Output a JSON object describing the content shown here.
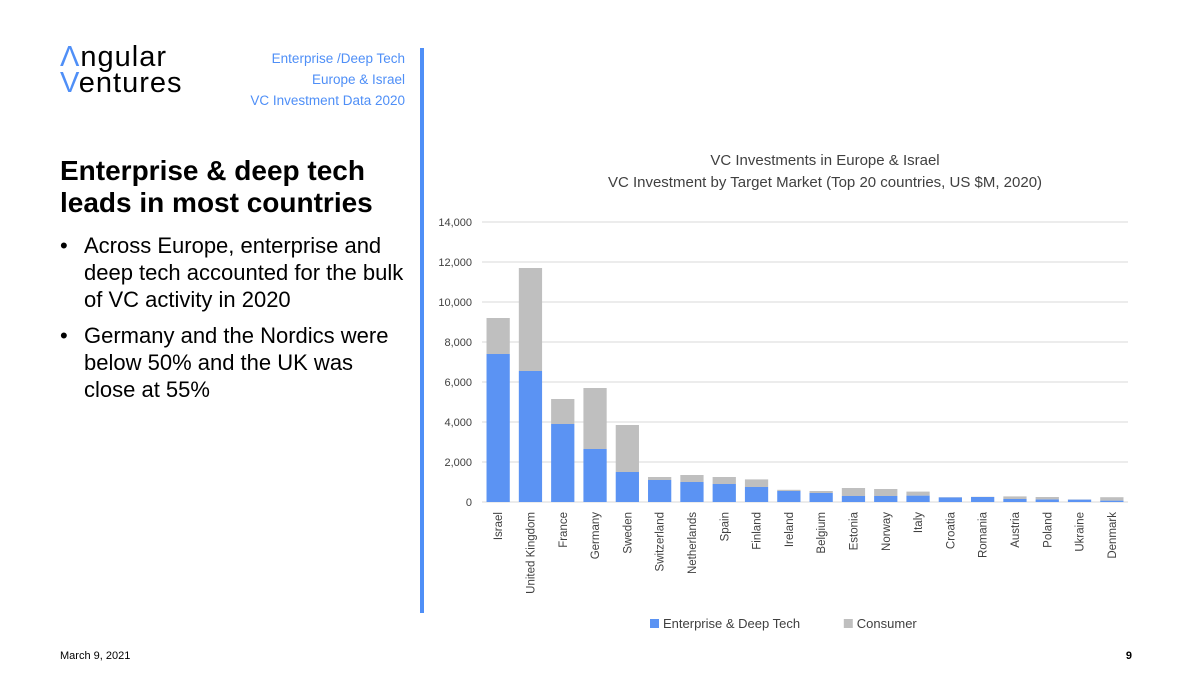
{
  "logo": {
    "line1_accent": "Λ",
    "line1_rest": "ngular",
    "line2_accent": "V",
    "line2_rest": "entures"
  },
  "header": {
    "subtitle_lines": [
      "Enterprise /Deep Tech",
      "Europe & Israel",
      "VC Investment Data 2020"
    ]
  },
  "content": {
    "heading": "Enterprise & deep tech leads in most countries",
    "bullets": [
      "Across Europe, enterprise and deep tech accounted for the bulk of VC activity in 2020",
      "Germany and the Nordics were below 50% and the UK was close at 55%"
    ],
    "bullet_symbol": "•"
  },
  "footer": {
    "date": "March 9, 2021",
    "page_number": "9"
  },
  "colors": {
    "accent": "#4f8ff7",
    "enterprise": "#5b93f3",
    "consumer": "#bfbfbf",
    "grid": "#d9d9d9",
    "text": "#404040"
  },
  "chart_data": {
    "type": "bar",
    "stacked": true,
    "title": "VC Investments in Europe & Israel",
    "subtitle": "VC Investment by Target Market  (Top 20 countries, US $M, 2020)",
    "categories": [
      "Israel",
      "United Kingdom",
      "France",
      "Germany",
      "Sweden",
      "Switzerland",
      "Netherlands",
      "Spain",
      "Finland",
      "Ireland",
      "Belgium",
      "Estonia",
      "Norway",
      "Italy",
      "Croatia",
      "Romania",
      "Austria",
      "Poland",
      "Ukraine",
      "Denmark"
    ],
    "series": [
      {
        "name": "Enterprise & Deep Tech",
        "values": [
          7400,
          6550,
          3900,
          2650,
          1500,
          1100,
          1000,
          900,
          750,
          550,
          450,
          300,
          300,
          320,
          230,
          250,
          150,
          130,
          120,
          70
        ]
      },
      {
        "name": "Consumer",
        "values": [
          1800,
          5150,
          1250,
          3050,
          2350,
          150,
          350,
          350,
          380,
          60,
          100,
          400,
          350,
          200,
          10,
          10,
          130,
          120,
          10,
          170
        ]
      }
    ],
    "ylim": [
      0,
      14000
    ],
    "yticks": [
      0,
      2000,
      4000,
      6000,
      8000,
      10000,
      12000,
      14000
    ],
    "ytick_labels": [
      "0",
      "2,000",
      "4,000",
      "6,000",
      "8,000",
      "10,000",
      "12,000",
      "14,000"
    ],
    "grid": true,
    "legend_position": "bottom"
  }
}
